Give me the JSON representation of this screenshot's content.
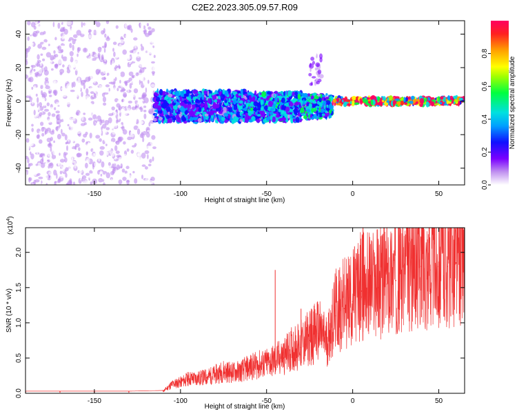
{
  "title": "C2E2.2023.305.09.57.R09",
  "chart_data": [
    {
      "type": "heatmap",
      "xlabel": "Height of straight line (km)",
      "ylabel": "Frequency (Hz)",
      "xlim": [
        -190,
        65
      ],
      "ylim": [
        -50,
        48
      ],
      "xticks": [
        -150,
        -100,
        -50,
        0,
        50
      ],
      "yticks": [
        -40,
        -20,
        0,
        20,
        40
      ],
      "colorbar": {
        "label": "Normalized spectral amplitude",
        "range": [
          0,
          1
        ],
        "ticks": [
          0.0,
          0.2,
          0.4,
          0.6,
          0.8
        ],
        "tick_labels": [
          "0.0",
          "0.2",
          "0.4",
          "0.6",
          "0.8"
        ]
      },
      "regions": [
        {
          "x": [
            -190,
            -115
          ],
          "freq_band": [
            -50,
            48
          ],
          "amplitude": 0.08
        },
        {
          "x": [
            -115,
            -60
          ],
          "freq_band": [
            -12,
            6
          ],
          "amplitude": 0.35
        },
        {
          "x": [
            -60,
            -30
          ],
          "freq_band": [
            -12,
            5
          ],
          "amplitude": 0.4
        },
        {
          "x": [
            -30,
            -12
          ],
          "freq_band": [
            -10,
            4
          ],
          "amplitude": 0.45
        },
        {
          "x": [
            -25,
            -18
          ],
          "freq_band": [
            10,
            28
          ],
          "amplitude": 0.15
        },
        {
          "x": [
            -12,
            65
          ],
          "freq_band": [
            -2,
            2
          ],
          "amplitude": 0.9
        }
      ]
    },
    {
      "type": "line",
      "xlabel": "Height of straight line (km)",
      "ylabel": "SNR (10 * v/v)",
      "multiplier_label": "(x10",
      "multiplier_exp": "4",
      "multiplier_close": ")",
      "xlim": [
        -190,
        65
      ],
      "ylim": [
        0,
        2.35
      ],
      "xticks": [
        -150,
        -100,
        -50,
        0,
        50
      ],
      "yticks": [
        0.0,
        0.5,
        1.0,
        1.5,
        2.0
      ],
      "ytick_labels": [
        "0.0",
        "0.5",
        "1.0",
        "1.5",
        "2.0"
      ],
      "color": "#f03030",
      "x": [
        -190,
        -170,
        -150,
        -130,
        -110,
        -105,
        -100,
        -95,
        -90,
        -85,
        -80,
        -75,
        -70,
        -65,
        -60,
        -55,
        -50,
        -45,
        -40,
        -35,
        -30,
        -25,
        -20,
        -15,
        -10,
        -5,
        0,
        5,
        10,
        15,
        20,
        25,
        30,
        35,
        40,
        45,
        50,
        55,
        60,
        65
      ],
      "y": [
        0.02,
        0.02,
        0.02,
        0.02,
        0.03,
        0.12,
        0.15,
        0.2,
        0.2,
        0.22,
        0.25,
        0.3,
        0.28,
        0.3,
        0.35,
        0.38,
        0.4,
        0.45,
        0.5,
        0.6,
        0.65,
        0.75,
        0.85,
        0.7,
        1.1,
        1.2,
        1.3,
        1.45,
        1.45,
        1.5,
        1.55,
        1.6,
        1.7,
        1.75,
        1.8,
        1.75,
        1.8,
        1.8,
        1.85,
        1.8
      ],
      "spikes": [
        {
          "x": -45,
          "y": 1.75
        },
        {
          "x": -30,
          "y": 1.2
        },
        {
          "x": -24,
          "y": 1.2
        },
        {
          "x": -8,
          "y": 1.75
        },
        {
          "x": 6,
          "y": 2.35
        },
        {
          "x": 27,
          "y": 2.25
        },
        {
          "x": 40,
          "y": 2.2
        },
        {
          "x": 57,
          "y": 2.15
        }
      ]
    }
  ]
}
